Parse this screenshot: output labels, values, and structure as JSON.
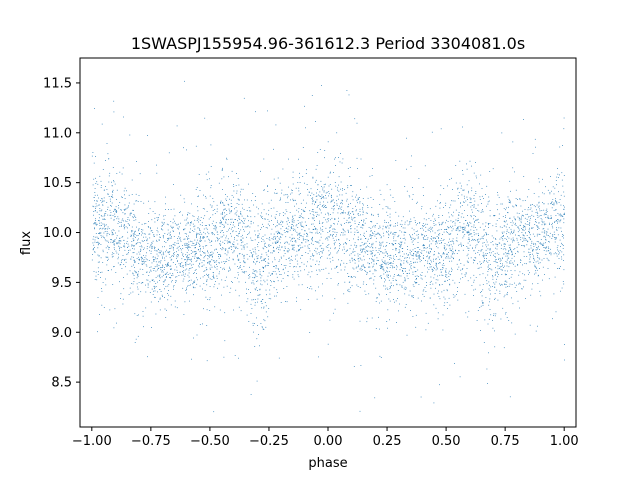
{
  "chart_data": {
    "type": "scatter",
    "title": "1SWASPJ155954.96-361612.3 Period 3304081.0s",
    "xlabel": "phase",
    "ylabel": "flux",
    "xlim": [
      -1.05,
      1.05
    ],
    "ylim": [
      8.05,
      11.75
    ],
    "xticks": [
      -1.0,
      -0.75,
      -0.5,
      -0.25,
      0.0,
      0.25,
      0.5,
      0.75,
      1.0
    ],
    "xtick_labels": [
      "−1.00",
      "−0.75",
      "−0.50",
      "−0.25",
      "0.00",
      "0.25",
      "0.50",
      "0.75",
      "1.00"
    ],
    "yticks": [
      8.5,
      9.0,
      9.5,
      10.0,
      10.5,
      11.0,
      11.5
    ],
    "ytick_labels": [
      "8.5",
      "9.0",
      "9.5",
      "10.0",
      "10.5",
      "11.0",
      "11.5"
    ],
    "grid": false,
    "legend": "none",
    "point_color": "#1f77b4",
    "series": [
      {
        "phase_profile": {
          "phase": [
            -1.0,
            -0.9,
            -0.8,
            -0.7,
            -0.6,
            -0.5,
            -0.4,
            -0.3,
            -0.2,
            -0.1,
            0.0,
            0.1,
            0.2,
            0.3,
            0.4,
            0.5,
            0.6,
            0.7,
            0.8,
            0.9,
            1.0
          ],
          "flux_center": [
            10.05,
            10.1,
            9.8,
            9.75,
            9.85,
            9.8,
            10.05,
            9.7,
            9.95,
            10.0,
            10.15,
            10.05,
            9.8,
            9.75,
            9.85,
            9.8,
            10.05,
            9.7,
            9.95,
            10.0,
            10.15
          ],
          "flux_spread": [
            0.28,
            0.3,
            0.25,
            0.25,
            0.22,
            0.3,
            0.28,
            0.35,
            0.25,
            0.25,
            0.3,
            0.3,
            0.25,
            0.25,
            0.22,
            0.3,
            0.28,
            0.35,
            0.25,
            0.25,
            0.3
          ]
        },
        "flux_min": 8.2,
        "flux_max": 11.6
      }
    ]
  }
}
